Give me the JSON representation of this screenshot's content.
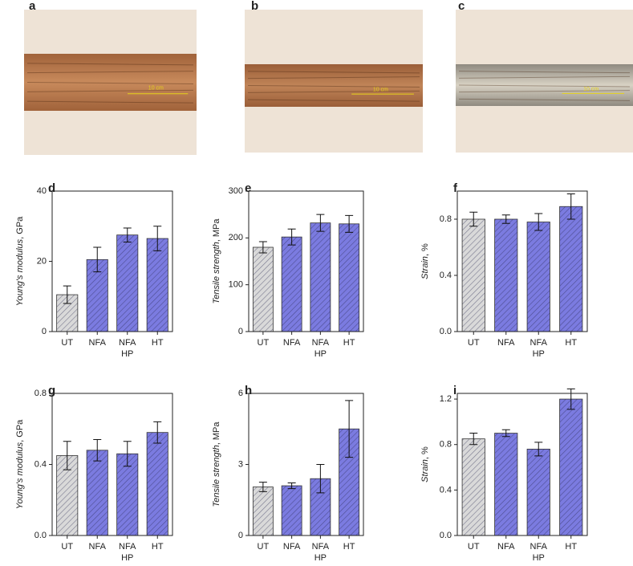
{
  "photos": [
    {
      "label": "a",
      "scale_text": "10 cm"
    },
    {
      "label": "b",
      "scale_text": "10 cm"
    },
    {
      "label": "c",
      "scale_text": "10 cm"
    }
  ],
  "chart_data": [
    {
      "type": "bar",
      "panel": "d",
      "ylabel": [
        "Young's modulus",
        ", GPa"
      ],
      "categories": [
        "UT",
        "NFA",
        "NFA",
        "HT"
      ],
      "category_sublabels": [
        null,
        null,
        "HP",
        null
      ],
      "values": [
        10.5,
        20.5,
        27.5,
        26.5
      ],
      "errors": [
        2.5,
        3.5,
        2,
        3.5
      ],
      "colors": [
        "#d9d9d9",
        "#7b7be0",
        "#7b7be0",
        "#7b7be0"
      ],
      "ylim": [
        0,
        40
      ],
      "yticks": [
        0,
        20,
        40
      ]
    },
    {
      "type": "bar",
      "panel": "e",
      "ylabel": [
        "Tensile strength",
        ", MPa"
      ],
      "categories": [
        "UT",
        "NFA",
        "NFA",
        "HT"
      ],
      "category_sublabels": [
        null,
        null,
        "HP",
        null
      ],
      "values": [
        180,
        202,
        232,
        230
      ],
      "errors": [
        12,
        17,
        18,
        18
      ],
      "colors": [
        "#d9d9d9",
        "#7b7be0",
        "#7b7be0",
        "#7b7be0"
      ],
      "ylim": [
        0,
        300
      ],
      "yticks": [
        0,
        100,
        200,
        300
      ]
    },
    {
      "type": "bar",
      "panel": "f",
      "ylabel": [
        "Strain",
        ", %"
      ],
      "categories": [
        "UT",
        "NFA",
        "NFA",
        "HT"
      ],
      "category_sublabels": [
        null,
        null,
        "HP",
        null
      ],
      "values": [
        0.8,
        0.8,
        0.78,
        0.89
      ],
      "errors": [
        0.05,
        0.03,
        0.06,
        0.09
      ],
      "colors": [
        "#d9d9d9",
        "#7b7be0",
        "#7b7be0",
        "#7b7be0"
      ],
      "ylim": [
        0,
        1.0
      ],
      "yticks": [
        {
          "value": 0,
          "label": "0.0"
        },
        0.4,
        0.8
      ]
    },
    {
      "type": "bar",
      "panel": "g",
      "ylabel": [
        "Young's modulus",
        ", GPa"
      ],
      "categories": [
        "UT",
        "NFA",
        "NFA",
        "HT"
      ],
      "category_sublabels": [
        null,
        null,
        "HP",
        null
      ],
      "values": [
        0.45,
        0.48,
        0.46,
        0.58
      ],
      "errors": [
        0.08,
        0.06,
        0.07,
        0.06
      ],
      "colors": [
        "#d9d9d9",
        "#7b7be0",
        "#7b7be0",
        "#7b7be0"
      ],
      "ylim": [
        0,
        0.8
      ],
      "yticks": [
        {
          "value": 0,
          "label": "0.0"
        },
        0.4,
        0.8
      ]
    },
    {
      "type": "bar",
      "panel": "h",
      "ylabel": [
        "Tensile strength",
        ", MPa"
      ],
      "categories": [
        "UT",
        "NFA",
        "NFA",
        "HT"
      ],
      "category_sublabels": [
        null,
        null,
        "HP",
        null
      ],
      "values": [
        2.05,
        2.1,
        2.4,
        4.5
      ],
      "errors": [
        0.2,
        0.12,
        0.6,
        1.2
      ],
      "colors": [
        "#d9d9d9",
        "#7b7be0",
        "#7b7be0",
        "#7b7be0"
      ],
      "ylim": [
        0,
        6
      ],
      "yticks": [
        0,
        3,
        6
      ]
    },
    {
      "type": "bar",
      "panel": "i",
      "ylabel": [
        "Strain",
        ", %"
      ],
      "categories": [
        "UT",
        "NFA",
        "NFA",
        "HT"
      ],
      "category_sublabels": [
        null,
        null,
        "HP",
        null
      ],
      "values": [
        0.85,
        0.9,
        0.76,
        1.2
      ],
      "errors": [
        0.05,
        0.03,
        0.06,
        0.09
      ],
      "colors": [
        "#d9d9d9",
        "#7b7be0",
        "#7b7be0",
        "#7b7be0"
      ],
      "ylim": [
        0,
        1.25
      ],
      "yticks": [
        {
          "value": 0,
          "label": "0.0"
        },
        0.4,
        0.8,
        1.2
      ]
    }
  ]
}
